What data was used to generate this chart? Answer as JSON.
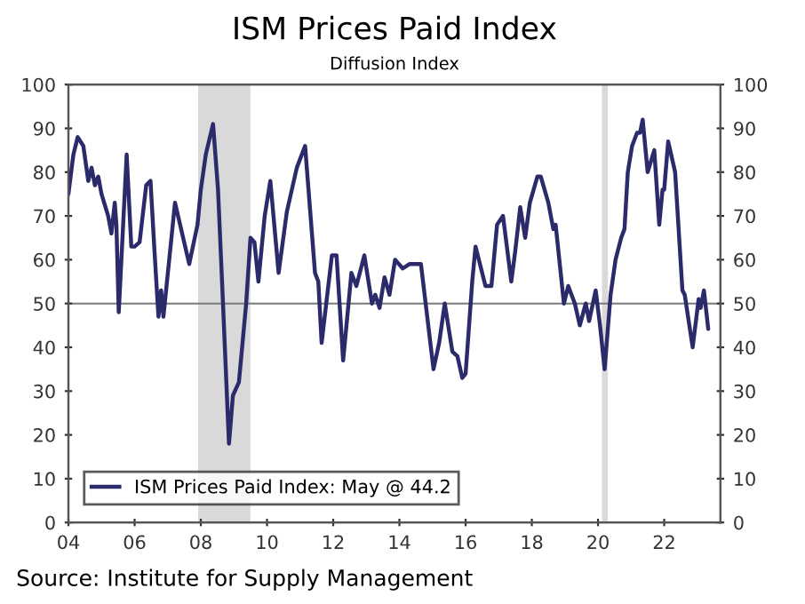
{
  "chart_data": {
    "type": "line",
    "title": "ISM Prices Paid Index",
    "subtitle": "Diffusion Index",
    "annotations": [
      "Source: Institute for Supply Management"
    ],
    "xlim": [
      2004,
      2023.7
    ],
    "xticks": [
      {
        "value": 2004,
        "label": "04"
      },
      {
        "value": 2006,
        "label": "06"
      },
      {
        "value": 2008,
        "label": "08"
      },
      {
        "value": 2010,
        "label": "10"
      },
      {
        "value": 2012,
        "label": "12"
      },
      {
        "value": 2014,
        "label": "14"
      },
      {
        "value": 2016,
        "label": "16"
      },
      {
        "value": 2018,
        "label": "18"
      },
      {
        "value": 2020,
        "label": "20"
      },
      {
        "value": 2022,
        "label": "22"
      }
    ],
    "ylim": [
      0,
      100
    ],
    "yticks": [
      0,
      10,
      20,
      30,
      40,
      50,
      60,
      70,
      80,
      90,
      100
    ],
    "y2lim": [
      0,
      100
    ],
    "y2ticks": [
      0,
      10,
      20,
      30,
      40,
      50,
      60,
      70,
      80,
      90,
      100
    ],
    "grid": false,
    "legend": "bottom left",
    "ref_lines": [
      {
        "axis": "y",
        "value": 50,
        "color": "#7a7a7a"
      }
    ],
    "bands": [
      {
        "axis": "x",
        "from": 2007.92,
        "to": 2009.5,
        "color": "#d9d9d9"
      },
      {
        "axis": "x",
        "from": 2020.12,
        "to": 2020.3,
        "color": "#d9d9d9"
      }
    ],
    "series": [
      {
        "name": "ISM Prices Paid Index: May @ 44.2",
        "color": "#2b2a6b",
        "x": [
          2004.0,
          2004.15,
          2004.28,
          2004.45,
          2004.6,
          2004.7,
          2004.8,
          2004.9,
          2005.0,
          2005.2,
          2005.3,
          2005.4,
          2005.45,
          2005.52,
          2005.76,
          2005.9,
          2006.0,
          2006.15,
          2006.35,
          2006.48,
          2006.6,
          2006.72,
          2006.8,
          2006.87,
          2007.22,
          2007.65,
          2007.9,
          2008.0,
          2008.15,
          2008.37,
          2008.52,
          2008.67,
          2008.85,
          2008.97,
          2009.15,
          2009.37,
          2009.5,
          2009.62,
          2009.74,
          2009.93,
          2010.1,
          2010.35,
          2010.6,
          2010.9,
          2011.15,
          2011.45,
          2011.55,
          2011.65,
          2011.96,
          2012.1,
          2012.3,
          2012.55,
          2012.7,
          2012.94,
          2013.17,
          2013.27,
          2013.4,
          2013.55,
          2013.7,
          2013.87,
          2014.1,
          2014.3,
          2014.65,
          2015.03,
          2015.2,
          2015.37,
          2015.6,
          2015.75,
          2015.9,
          2016.0,
          2016.2,
          2016.3,
          2016.6,
          2016.78,
          2016.95,
          2017.13,
          2017.38,
          2017.5,
          2017.65,
          2017.8,
          2017.94,
          2018.17,
          2018.27,
          2018.5,
          2018.65,
          2018.72,
          2018.97,
          2019.1,
          2019.3,
          2019.45,
          2019.63,
          2019.73,
          2019.93,
          2020.06,
          2020.2,
          2020.38,
          2020.53,
          2020.7,
          2020.8,
          2020.9,
          2021.03,
          2021.18,
          2021.27,
          2021.35,
          2021.5,
          2021.7,
          2021.85,
          2021.95,
          2022.0,
          2022.12,
          2022.33,
          2022.55,
          2022.62,
          2022.86,
          2023.04,
          2023.1,
          2023.2,
          2023.33
        ],
        "values": [
          75,
          84,
          88,
          86,
          78,
          81,
          77,
          79,
          75,
          70,
          66,
          73,
          68,
          48,
          84,
          63,
          63,
          64,
          77,
          78,
          62,
          47,
          53,
          47,
          73,
          59,
          68,
          76,
          84,
          91,
          76,
          50,
          18,
          29,
          32,
          50,
          65,
          64,
          55,
          70,
          78,
          57,
          71,
          81,
          86,
          57,
          55,
          41,
          61,
          61,
          37,
          57,
          54,
          61,
          50,
          52,
          49,
          56,
          52,
          60,
          58,
          59,
          59,
          35,
          41,
          50,
          39,
          38,
          33,
          34,
          55,
          63,
          54,
          54,
          68,
          70,
          55,
          62,
          72,
          65,
          73,
          79,
          79,
          73,
          67,
          68,
          50,
          54,
          50,
          45,
          50,
          46,
          53,
          45,
          35,
          52,
          60,
          65,
          67,
          80,
          86,
          89,
          89,
          92,
          80,
          85,
          68,
          76,
          76,
          87,
          80,
          53,
          52,
          40,
          51,
          49,
          53,
          44.2
        ]
      }
    ]
  }
}
